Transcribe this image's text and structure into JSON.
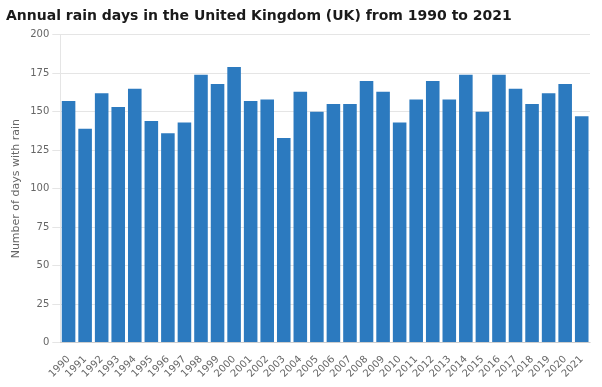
{
  "chart_data": {
    "type": "bar",
    "title": "Annual rain days in the United Kingdom (UK) from 1990 to 2021",
    "ylabel": "Number of days with rain",
    "categories": [
      "1990",
      "1991",
      "1992",
      "1993",
      "1994",
      "1995",
      "1996",
      "1997",
      "1998",
      "1999",
      "2000",
      "2001",
      "2002",
      "2003",
      "2004",
      "2005",
      "2006",
      "2007",
      "2008",
      "2009",
      "2010",
      "2011",
      "2012",
      "2013",
      "2014",
      "2015",
      "2016",
      "2017",
      "2018",
      "2019",
      "2020",
      "2021"
    ],
    "values": [
      157,
      139,
      162,
      153,
      165,
      144,
      136,
      143,
      174,
      168,
      179,
      157,
      158,
      133,
      163,
      150,
      155,
      155,
      170,
      163,
      143,
      158,
      170,
      158,
      174,
      150,
      174,
      165,
      155,
      162,
      168,
      147
    ],
    "color": "#2c7abf",
    "ylim": [
      0,
      200
    ],
    "yticks": [
      0,
      25,
      50,
      75,
      100,
      125,
      150,
      175,
      200
    ],
    "grid": true
  }
}
